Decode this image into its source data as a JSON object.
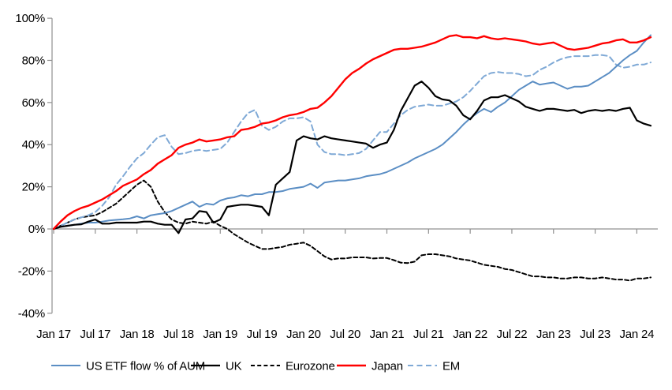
{
  "chart_data": {
    "type": "line",
    "title": "",
    "xlabel": "",
    "ylabel": "",
    "ylim": [
      -40,
      100
    ],
    "grid": false,
    "legend_position": "bottom",
    "x_start": "Jan 2017",
    "x_interval": "monthly",
    "x_tick_labels": [
      "Jan 17",
      "Jul 17",
      "Jan 18",
      "Jul 18",
      "Jan 19",
      "Jul 19",
      "Jan 20",
      "Jul 20",
      "Jan 21",
      "Jul 21",
      "Jan 22",
      "Jul 22",
      "Jan 23",
      "Jul 23",
      "Jan 24"
    ],
    "y_ticks": [
      100,
      80,
      60,
      40,
      20,
      0,
      -20,
      -40
    ],
    "y_tick_labels": [
      "100%",
      "80%",
      "60%",
      "40%",
      "20%",
      "0%",
      "-20%",
      "-40%"
    ],
    "axis_color": "#909090",
    "series": [
      {
        "name": "Eurozone",
        "color": "#000000",
        "style": "dashed",
        "values": [
          0,
          1.5,
          3,
          4.5,
          5.5,
          6,
          6.5,
          8,
          10,
          12,
          15,
          18,
          21,
          23,
          20,
          13,
          8,
          4.5,
          3,
          2.5,
          3.5,
          3,
          2.5,
          3.5,
          1.5,
          0,
          -2.5,
          -4.5,
          -6.5,
          -8,
          -9.5,
          -9.5,
          -9,
          -8.5,
          -7.5,
          -7,
          -6.5,
          -8,
          -10.5,
          -13,
          -14.5,
          -14,
          -14,
          -13.5,
          -13.5,
          -13.5,
          -14,
          -13.8,
          -13.8,
          -14.8,
          -16,
          -16.2,
          -15.5,
          -12.5,
          -12,
          -12,
          -12.5,
          -13,
          -14,
          -14.5,
          -15,
          -16,
          -17,
          -17.5,
          -18,
          -19,
          -19.5,
          -20.5,
          -21.5,
          -22.5,
          -22.5,
          -23,
          -23,
          -23.5,
          -23.5,
          -23,
          -23,
          -23.5,
          -23.5,
          -23,
          -23.5,
          -24,
          -24,
          -24.5,
          -23.5,
          -23.5,
          -23
        ]
      },
      {
        "name": "EM",
        "color": "#7FA9D6",
        "style": "dashed",
        "values": [
          0,
          1.5,
          3,
          4.5,
          5.5,
          6.5,
          8,
          11,
          15,
          21,
          25,
          29.5,
          33.5,
          36,
          40,
          43.5,
          44.5,
          39,
          35.5,
          36,
          37,
          37.5,
          37,
          37.5,
          38,
          41,
          46,
          51,
          55,
          56.5,
          49,
          47,
          48.5,
          51,
          52.5,
          52.5,
          53,
          51,
          40,
          36.5,
          35.5,
          35.5,
          35,
          35.5,
          36,
          38,
          42,
          46,
          46,
          50,
          54,
          56.5,
          58,
          58.5,
          59,
          58.5,
          58.5,
          59.5,
          60.5,
          62.5,
          65.5,
          69,
          72.5,
          74,
          74.5,
          74,
          74,
          73.5,
          72.5,
          73,
          75.5,
          77,
          79,
          80.5,
          81.5,
          82,
          82,
          82,
          82.5,
          82.5,
          82,
          78,
          76.5,
          77,
          78,
          78,
          79
        ]
      },
      {
        "name": "US ETF flow % of AUM",
        "color": "#5B8EC4",
        "style": "solid",
        "values": [
          0,
          1,
          1.5,
          2,
          2.5,
          3,
          3,
          3.5,
          4,
          4.3,
          4.6,
          5,
          6,
          5,
          6.5,
          7,
          7.5,
          8.5,
          10,
          11.5,
          13,
          10.5,
          12,
          11.5,
          13.5,
          14.5,
          15,
          16,
          15.5,
          16.5,
          16.5,
          17.5,
          17.5,
          18,
          19,
          19.5,
          20,
          21.5,
          19.5,
          22,
          22.5,
          23,
          23,
          23.5,
          24,
          25,
          25.5,
          26,
          27,
          28.5,
          30,
          31.5,
          33.5,
          35,
          36.5,
          38,
          40,
          43,
          46,
          49.5,
          52.5,
          55,
          57,
          55.5,
          58,
          60,
          63,
          66,
          68,
          70,
          68.5,
          69,
          69.5,
          68,
          66.5,
          67.5,
          67.5,
          68,
          70,
          72,
          74,
          77,
          80,
          82.5,
          84.5,
          88.5,
          92
        ]
      },
      {
        "name": "UK",
        "color": "#000000",
        "style": "solid",
        "values": [
          0,
          1,
          1.5,
          2,
          2.2,
          3.5,
          4.5,
          2.5,
          2.5,
          3,
          3,
          3,
          3,
          3.5,
          3.5,
          2.5,
          2,
          2,
          -2,
          4.5,
          5,
          8.5,
          8,
          3,
          4.5,
          10.5,
          11,
          11.5,
          11.5,
          11,
          10.5,
          6.5,
          21,
          24,
          27,
          42,
          44,
          43,
          42.5,
          44,
          43,
          42.5,
          42,
          41.5,
          41,
          40.5,
          38.5,
          40,
          41,
          47,
          56,
          62,
          68,
          70,
          67,
          63,
          61.5,
          61,
          58.5,
          54,
          52,
          56,
          61,
          62.5,
          62.5,
          63.5,
          62,
          60.5,
          58,
          57,
          56,
          57,
          57,
          56.5,
          56,
          56.5,
          55,
          56,
          56.5,
          56,
          56.5,
          56,
          57,
          57.5,
          51.5,
          50,
          49
        ]
      },
      {
        "name": "Japan",
        "color": "#FF0000",
        "style": "solid",
        "values": [
          0,
          3.5,
          6.5,
          8.5,
          10,
          11,
          12.5,
          14,
          16,
          18,
          20.5,
          22,
          23.5,
          26,
          28,
          31,
          33,
          35,
          38.5,
          40,
          41,
          42.5,
          41.5,
          42,
          42.5,
          43.5,
          44,
          47,
          47.5,
          48.5,
          50,
          50.5,
          51.5,
          53,
          54,
          54.5,
          55.5,
          57,
          57.5,
          60,
          63,
          67,
          71,
          74,
          76,
          78.5,
          80.5,
          82,
          83.5,
          85,
          85.5,
          85.5,
          86,
          86.5,
          87.5,
          88.5,
          90,
          91.5,
          92,
          91,
          91,
          90.5,
          91.5,
          90.5,
          90,
          90.5,
          90,
          89.5,
          89,
          88,
          87.5,
          88,
          88.5,
          87,
          85.5,
          85,
          85.5,
          86,
          87,
          88,
          88.5,
          89.5,
          90,
          88.5,
          88.5,
          89.5,
          91
        ]
      }
    ],
    "legend_order": [
      "US ETF flow % of AUM",
      "UK",
      "Eurozone",
      "Japan",
      "EM"
    ]
  }
}
